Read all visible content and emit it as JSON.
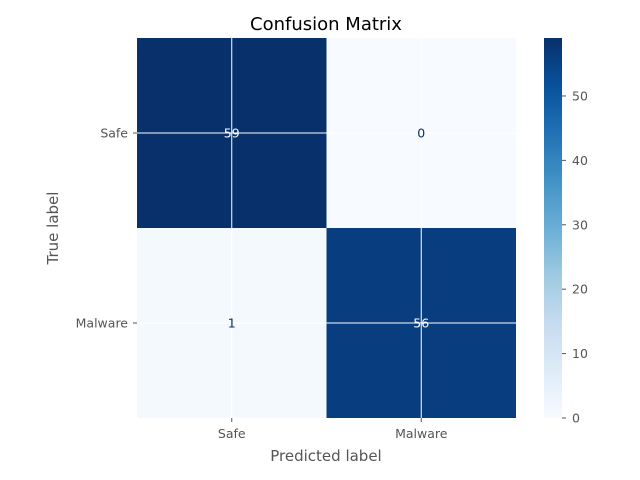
{
  "chart_data": {
    "type": "heatmap",
    "title": "Confusion Matrix",
    "xlabel": "Predicted label",
    "ylabel": "True label",
    "x_categories": [
      "Safe",
      "Malware"
    ],
    "y_categories": [
      "Safe",
      "Malware"
    ],
    "matrix": [
      [
        59,
        0
      ],
      [
        1,
        56
      ]
    ],
    "colormap": "Blues",
    "colorbar": {
      "min": 0,
      "max": 59,
      "ticks": [
        0,
        10,
        20,
        30,
        40,
        50
      ],
      "tick_labels": [
        "0",
        "10",
        "20",
        "30",
        "40",
        "50"
      ]
    },
    "grid": true,
    "colors": {
      "cmap_low": "#f7fbff",
      "cmap_high": "#08306b",
      "text_on_dark": "#ffffff",
      "text_on_light": "#08306b",
      "grid": "#ffffff"
    }
  }
}
